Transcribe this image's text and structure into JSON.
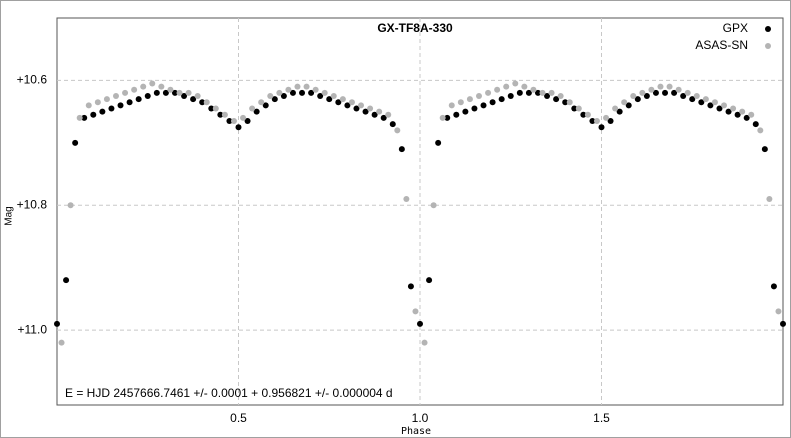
{
  "chart_data": {
    "type": "scatter",
    "title": "GX-TF8A-330",
    "x_label": "Phase",
    "y_label": "Mag",
    "annotation": "E = HJD 2457666.7461 +/- 0.0001 + 0.956821 +/- 0.000004 d",
    "xlim": [
      0,
      2
    ],
    "ylim": [
      10.5,
      11.12
    ],
    "invert_y": true,
    "grid": true,
    "legend": "upper right",
    "xticks": [
      0.5,
      {
        "value": 1,
        "label": "1.0"
      },
      1.5
    ],
    "yticks": [
      {
        "value": 10.6,
        "label": "+10.6"
      },
      {
        "value": 10.8,
        "label": "+10.8"
      },
      {
        "value": 11,
        "label": "+11.0"
      }
    ],
    "series": [
      {
        "name": "GPX",
        "color": "#000000",
        "x": [
          0,
          0.025,
          0.05,
          0.075,
          0.1,
          0.125,
          0.15,
          0.175,
          0.2,
          0.225,
          0.25,
          0.275,
          0.3,
          0.325,
          0.35,
          0.375,
          0.4,
          0.425,
          0.45,
          0.475,
          0.5,
          0.525,
          0.55,
          0.575,
          0.6,
          0.625,
          0.65,
          0.675,
          0.7,
          0.725,
          0.75,
          0.775,
          0.8,
          0.825,
          0.85,
          0.875,
          0.9,
          0.925,
          0.95,
          0.975,
          1,
          1.025,
          1.05,
          1.075,
          1.1,
          1.125,
          1.15,
          1.175,
          1.2,
          1.225,
          1.25,
          1.275,
          1.3,
          1.325,
          1.35,
          1.375,
          1.4,
          1.425,
          1.45,
          1.475,
          1.5,
          1.525,
          1.55,
          1.575,
          1.6,
          1.625,
          1.65,
          1.675,
          1.7,
          1.725,
          1.75,
          1.775,
          1.8,
          1.825,
          1.85,
          1.875,
          1.9,
          1.925,
          1.95,
          1.975,
          2
        ],
        "values": [
          10.99,
          10.92,
          10.7,
          10.66,
          10.655,
          10.65,
          10.645,
          10.64,
          10.635,
          10.63,
          10.625,
          10.62,
          10.62,
          10.62,
          10.625,
          10.63,
          10.635,
          10.645,
          10.655,
          10.665,
          10.675,
          10.665,
          10.65,
          10.64,
          10.63,
          10.625,
          10.62,
          10.62,
          10.62,
          10.625,
          10.63,
          10.635,
          10.64,
          10.645,
          10.65,
          10.655,
          10.66,
          10.67,
          10.71,
          10.93,
          10.99,
          10.92,
          10.7,
          10.66,
          10.655,
          10.65,
          10.645,
          10.64,
          10.635,
          10.63,
          10.625,
          10.62,
          10.62,
          10.62,
          10.625,
          10.63,
          10.635,
          10.645,
          10.655,
          10.665,
          10.675,
          10.665,
          10.65,
          10.64,
          10.63,
          10.625,
          10.62,
          10.62,
          10.62,
          10.625,
          10.63,
          10.635,
          10.64,
          10.645,
          10.65,
          10.655,
          10.66,
          10.67,
          10.71,
          10.93,
          10.99
        ]
      },
      {
        "name": "ASAS-SN",
        "color": "#b4b4b4",
        "x": [
          0.0125,
          0.0375,
          0.0625,
          0.0875,
          0.1125,
          0.1375,
          0.1625,
          0.1875,
          0.2125,
          0.2375,
          0.2625,
          0.2875,
          0.3125,
          0.3375,
          0.3625,
          0.3875,
          0.4125,
          0.4375,
          0.4625,
          0.4875,
          0.5125,
          0.5375,
          0.5625,
          0.5875,
          0.6125,
          0.6375,
          0.6625,
          0.6875,
          0.7125,
          0.7375,
          0.7625,
          0.7875,
          0.8125,
          0.8375,
          0.8625,
          0.8875,
          0.9125,
          0.9375,
          0.9625,
          0.9875,
          1.0125,
          1.0375,
          1.0625,
          1.0875,
          1.1125,
          1.1375,
          1.1625,
          1.1875,
          1.2125,
          1.2375,
          1.2625,
          1.2875,
          1.3125,
          1.3375,
          1.3625,
          1.3875,
          1.4125,
          1.4375,
          1.4625,
          1.4875,
          1.5125,
          1.5375,
          1.5625,
          1.5875,
          1.6125,
          1.6375,
          1.6625,
          1.6875,
          1.7125,
          1.7375,
          1.7625,
          1.7875,
          1.8125,
          1.8375,
          1.8625,
          1.8875,
          1.9125,
          1.9375,
          1.9625,
          1.9875
        ],
        "values": [
          11.02,
          10.8,
          10.66,
          10.64,
          10.635,
          10.63,
          10.625,
          10.62,
          10.615,
          10.61,
          10.605,
          10.61,
          10.615,
          10.62,
          10.62,
          10.625,
          10.635,
          10.645,
          10.655,
          10.665,
          10.66,
          10.645,
          10.635,
          10.625,
          10.62,
          10.615,
          10.61,
          10.61,
          10.615,
          10.62,
          10.625,
          10.63,
          10.635,
          10.64,
          10.645,
          10.65,
          10.655,
          10.68,
          10.79,
          10.97,
          11.02,
          10.8,
          10.66,
          10.64,
          10.635,
          10.63,
          10.625,
          10.62,
          10.615,
          10.61,
          10.605,
          10.61,
          10.615,
          10.62,
          10.62,
          10.625,
          10.635,
          10.645,
          10.655,
          10.665,
          10.66,
          10.645,
          10.635,
          10.625,
          10.62,
          10.615,
          10.61,
          10.61,
          10.615,
          10.62,
          10.625,
          10.63,
          10.635,
          10.64,
          10.645,
          10.65,
          10.655,
          10.68,
          10.79,
          10.97
        ]
      }
    ]
  }
}
